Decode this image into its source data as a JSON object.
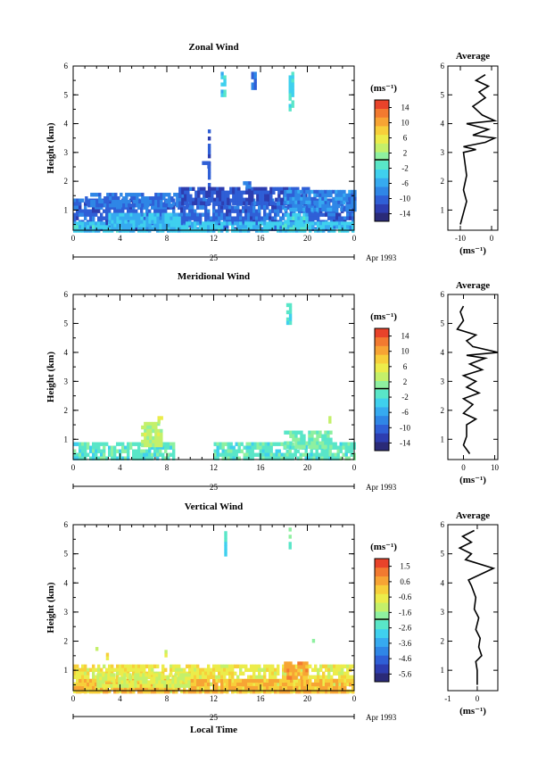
{
  "chart_data": [
    {
      "type": "heatmap",
      "title": "Zonal Wind",
      "ylabel": "Height (km)",
      "xlabel": "",
      "x_ticks": [
        "0",
        "4",
        "8",
        "12",
        "16",
        "20",
        "0"
      ],
      "y_ticks": [
        "1",
        "2",
        "3",
        "4",
        "5",
        "6"
      ],
      "xlim": [
        0,
        24
      ],
      "ylim": [
        0.3,
        6
      ],
      "date_day": "25",
      "date_label": "Apr 1993",
      "colorbar": {
        "unit": "(ms⁻¹)",
        "labels": [
          "14",
          "10",
          "6",
          "2",
          "-2",
          "-6",
          "-10",
          "-14"
        ],
        "range": [
          -16,
          16
        ]
      },
      "blocks": [
        {
          "x0": 0,
          "x1": 24,
          "y0": 0.3,
          "y1": 1.4,
          "v": -10
        },
        {
          "x0": 0,
          "x1": 24,
          "y0": 0.3,
          "y1": 0.6,
          "v": -4
        },
        {
          "x0": 1,
          "x1": 10,
          "y0": 1.2,
          "y1": 1.6,
          "v": -9
        },
        {
          "x0": 9,
          "x1": 20,
          "y0": 1.2,
          "y1": 1.8,
          "v": -11
        },
        {
          "x0": 18,
          "x1": 24,
          "y0": 1.0,
          "y1": 1.7,
          "v": -8
        },
        {
          "x0": 12.6,
          "x1": 13.0,
          "y0": 5.0,
          "y1": 5.8,
          "v": -3
        },
        {
          "x0": 15.2,
          "x1": 15.6,
          "y0": 5.2,
          "y1": 5.8,
          "v": -9
        },
        {
          "x0": 18.4,
          "x1": 18.7,
          "y0": 4.5,
          "y1": 5.8,
          "v": -2
        },
        {
          "x0": 11.5,
          "x1": 11.7,
          "y0": 1.2,
          "y1": 3.8,
          "v": -10
        },
        {
          "x0": 11.0,
          "x1": 11.6,
          "y0": 2.5,
          "y1": 2.7,
          "v": -11
        },
        {
          "x0": 14.5,
          "x1": 15.0,
          "y0": 1.8,
          "y1": 2.0,
          "v": -9
        },
        {
          "x0": 3,
          "x1": 9,
          "y0": 0.3,
          "y1": 0.9,
          "v": -5
        },
        {
          "x0": 18,
          "x1": 20,
          "y0": 0.3,
          "y1": 0.9,
          "v": -3
        }
      ],
      "average": {
        "title": "Average",
        "xlabel": "(ms⁻¹)",
        "x_ticks": [
          "-10",
          "0"
        ],
        "xlim": [
          -14,
          2
        ],
        "y_ticks": [
          "1",
          "2",
          "3",
          "4",
          "5",
          "6"
        ],
        "profile": [
          {
            "x": -10,
            "y": 0.5
          },
          {
            "x": -9,
            "y": 0.9
          },
          {
            "x": -8,
            "y": 1.3
          },
          {
            "x": -9,
            "y": 1.7
          },
          {
            "x": -8,
            "y": 2.2
          },
          {
            "x": -8.5,
            "y": 2.6
          },
          {
            "x": -9,
            "y": 3.0
          },
          {
            "x": -5,
            "y": 3.1
          },
          {
            "x": -9,
            "y": 3.2
          },
          {
            "x": -2,
            "y": 3.35
          },
          {
            "x": 1,
            "y": 3.5
          },
          {
            "x": -6,
            "y": 3.6
          },
          {
            "x": -1,
            "y": 3.8
          },
          {
            "x": -8,
            "y": 4.0
          },
          {
            "x": 1,
            "y": 4.1
          },
          {
            "x": -3,
            "y": 4.3
          },
          {
            "x": -6,
            "y": 4.6
          },
          {
            "x": -2,
            "y": 4.9
          },
          {
            "x": -4,
            "y": 5.1
          },
          {
            "x": -1,
            "y": 5.3
          },
          {
            "x": -5,
            "y": 5.5
          },
          {
            "x": -2,
            "y": 5.7
          }
        ]
      }
    },
    {
      "type": "heatmap",
      "title": "Meridional Wind",
      "ylabel": "Height (km)",
      "xlabel": "",
      "x_ticks": [
        "0",
        "4",
        "8",
        "12",
        "16",
        "20",
        "0"
      ],
      "y_ticks": [
        "1",
        "2",
        "3",
        "4",
        "5",
        "6"
      ],
      "xlim": [
        0,
        24
      ],
      "ylim": [
        0.3,
        6
      ],
      "date_day": "25",
      "date_label": "Apr 1993",
      "colorbar": {
        "unit": "(ms⁻¹)",
        "labels": [
          "14",
          "10",
          "6",
          "2",
          "-2",
          "-6",
          "-10",
          "-14"
        ],
        "range": [
          -16,
          16
        ]
      },
      "blocks": [
        {
          "x0": 0,
          "x1": 8.5,
          "y0": 0.3,
          "y1": 0.9,
          "v": -1
        },
        {
          "x0": 5.8,
          "x1": 7.5,
          "y0": 0.8,
          "y1": 1.6,
          "v": 3
        },
        {
          "x0": 7.2,
          "x1": 7.5,
          "y0": 1.6,
          "y1": 1.8,
          "v": 5
        },
        {
          "x0": 12,
          "x1": 24,
          "y0": 0.3,
          "y1": 0.9,
          "v": -1
        },
        {
          "x0": 18,
          "x1": 22,
          "y0": 0.8,
          "y1": 1.3,
          "v": 0
        },
        {
          "x0": 18.2,
          "x1": 18.5,
          "y0": 5.0,
          "y1": 5.7,
          "v": -2
        },
        {
          "x0": 21.8,
          "x1": 22.0,
          "y0": 1.6,
          "y1": 1.8,
          "v": 4
        }
      ],
      "average": {
        "title": "Average",
        "xlabel": "(ms⁻¹)",
        "x_ticks": [
          "0",
          "10"
        ],
        "xlim": [
          -5,
          11
        ],
        "y_ticks": [
          "1",
          "2",
          "3",
          "4",
          "5",
          "6"
        ],
        "profile": [
          {
            "x": 2,
            "y": 0.5
          },
          {
            "x": 0,
            "y": 0.8
          },
          {
            "x": 1,
            "y": 1.1
          },
          {
            "x": 1,
            "y": 1.5
          },
          {
            "x": 4,
            "y": 1.7
          },
          {
            "x": 0,
            "y": 1.9
          },
          {
            "x": 3,
            "y": 2.2
          },
          {
            "x": 0,
            "y": 2.4
          },
          {
            "x": 5,
            "y": 2.6
          },
          {
            "x": 1,
            "y": 2.8
          },
          {
            "x": 4,
            "y": 3.0
          },
          {
            "x": 0,
            "y": 3.2
          },
          {
            "x": 6,
            "y": 3.4
          },
          {
            "x": 2,
            "y": 3.6
          },
          {
            "x": 7,
            "y": 3.8
          },
          {
            "x": 1,
            "y": 3.9
          },
          {
            "x": 11,
            "y": 4.0
          },
          {
            "x": 3,
            "y": 4.2
          },
          {
            "x": 1,
            "y": 4.4
          },
          {
            "x": 4,
            "y": 4.6
          },
          {
            "x": -2,
            "y": 4.8
          },
          {
            "x": 0,
            "y": 5.1
          },
          {
            "x": -1,
            "y": 5.4
          },
          {
            "x": 0,
            "y": 5.6
          }
        ]
      }
    },
    {
      "type": "heatmap",
      "title": "Vertical Wind",
      "ylabel": "Height (km)",
      "xlabel": "Local Time",
      "x_ticks": [
        "0",
        "4",
        "8",
        "12",
        "16",
        "20",
        "0"
      ],
      "y_ticks": [
        "1",
        "2",
        "3",
        "4",
        "5",
        "6"
      ],
      "xlim": [
        0,
        24
      ],
      "ylim": [
        0.3,
        6
      ],
      "date_day": "25",
      "date_label": "Apr 1993",
      "colorbar": {
        "unit": "(ms⁻¹)",
        "labels": [
          "1.5",
          "0.6",
          "-0.6",
          "-1.6",
          "-2.6",
          "-3.6",
          "-4.6",
          "-5.6"
        ],
        "range": [
          -6,
          2
        ]
      },
      "blocks": [
        {
          "x0": 0,
          "x1": 24,
          "y0": 0.3,
          "y1": 1.2,
          "v": -0.5
        },
        {
          "x0": 0,
          "x1": 24,
          "y0": 0.3,
          "y1": 0.7,
          "v": 0.3
        },
        {
          "x0": 2,
          "x1": 10,
          "y0": 0.5,
          "y1": 0.9,
          "v": -0.9
        },
        {
          "x0": 18,
          "x1": 20,
          "y0": 0.8,
          "y1": 1.3,
          "v": 0.6
        },
        {
          "x0": 12.9,
          "x1": 13.1,
          "y0": 4.9,
          "y1": 5.9,
          "v": -2.6
        },
        {
          "x0": 18.4,
          "x1": 18.6,
          "y0": 5.2,
          "y1": 5.9,
          "v": -2.2
        },
        {
          "x0": 2.8,
          "x1": 3.0,
          "y0": 1.4,
          "y1": 1.6,
          "v": -0.4
        },
        {
          "x0": 7.8,
          "x1": 8.0,
          "y0": 1.5,
          "y1": 1.7,
          "v": -0.6
        },
        {
          "x0": 1.9,
          "x1": 2.1,
          "y0": 1.6,
          "y1": 1.8,
          "v": -1.1
        },
        {
          "x0": 20.4,
          "x1": 20.6,
          "y0": 2.0,
          "y1": 2.2,
          "v": -1.2
        }
      ],
      "average": {
        "title": "Average",
        "xlabel": "(ms⁻¹)",
        "x_ticks": [
          "-1",
          "0"
        ],
        "xlim": [
          -1,
          0.7
        ],
        "y_ticks": [
          "1",
          "2",
          "3",
          "4",
          "5",
          "6"
        ],
        "profile": [
          {
            "x": 0.0,
            "y": 0.5
          },
          {
            "x": 0.0,
            "y": 1.0
          },
          {
            "x": -0.05,
            "y": 1.3
          },
          {
            "x": 0.15,
            "y": 1.5
          },
          {
            "x": 0.05,
            "y": 1.8
          },
          {
            "x": 0.1,
            "y": 2.1
          },
          {
            "x": -0.05,
            "y": 2.4
          },
          {
            "x": 0.05,
            "y": 2.8
          },
          {
            "x": -0.1,
            "y": 3.1
          },
          {
            "x": -0.05,
            "y": 3.5
          },
          {
            "x": -0.2,
            "y": 3.9
          },
          {
            "x": -0.3,
            "y": 4.1
          },
          {
            "x": 0.55,
            "y": 4.5
          },
          {
            "x": -0.4,
            "y": 4.8
          },
          {
            "x": -0.2,
            "y": 5.0
          },
          {
            "x": -0.6,
            "y": 5.2
          },
          {
            "x": -0.2,
            "y": 5.4
          },
          {
            "x": -0.5,
            "y": 5.6
          },
          {
            "x": -0.1,
            "y": 5.8
          }
        ]
      }
    }
  ]
}
